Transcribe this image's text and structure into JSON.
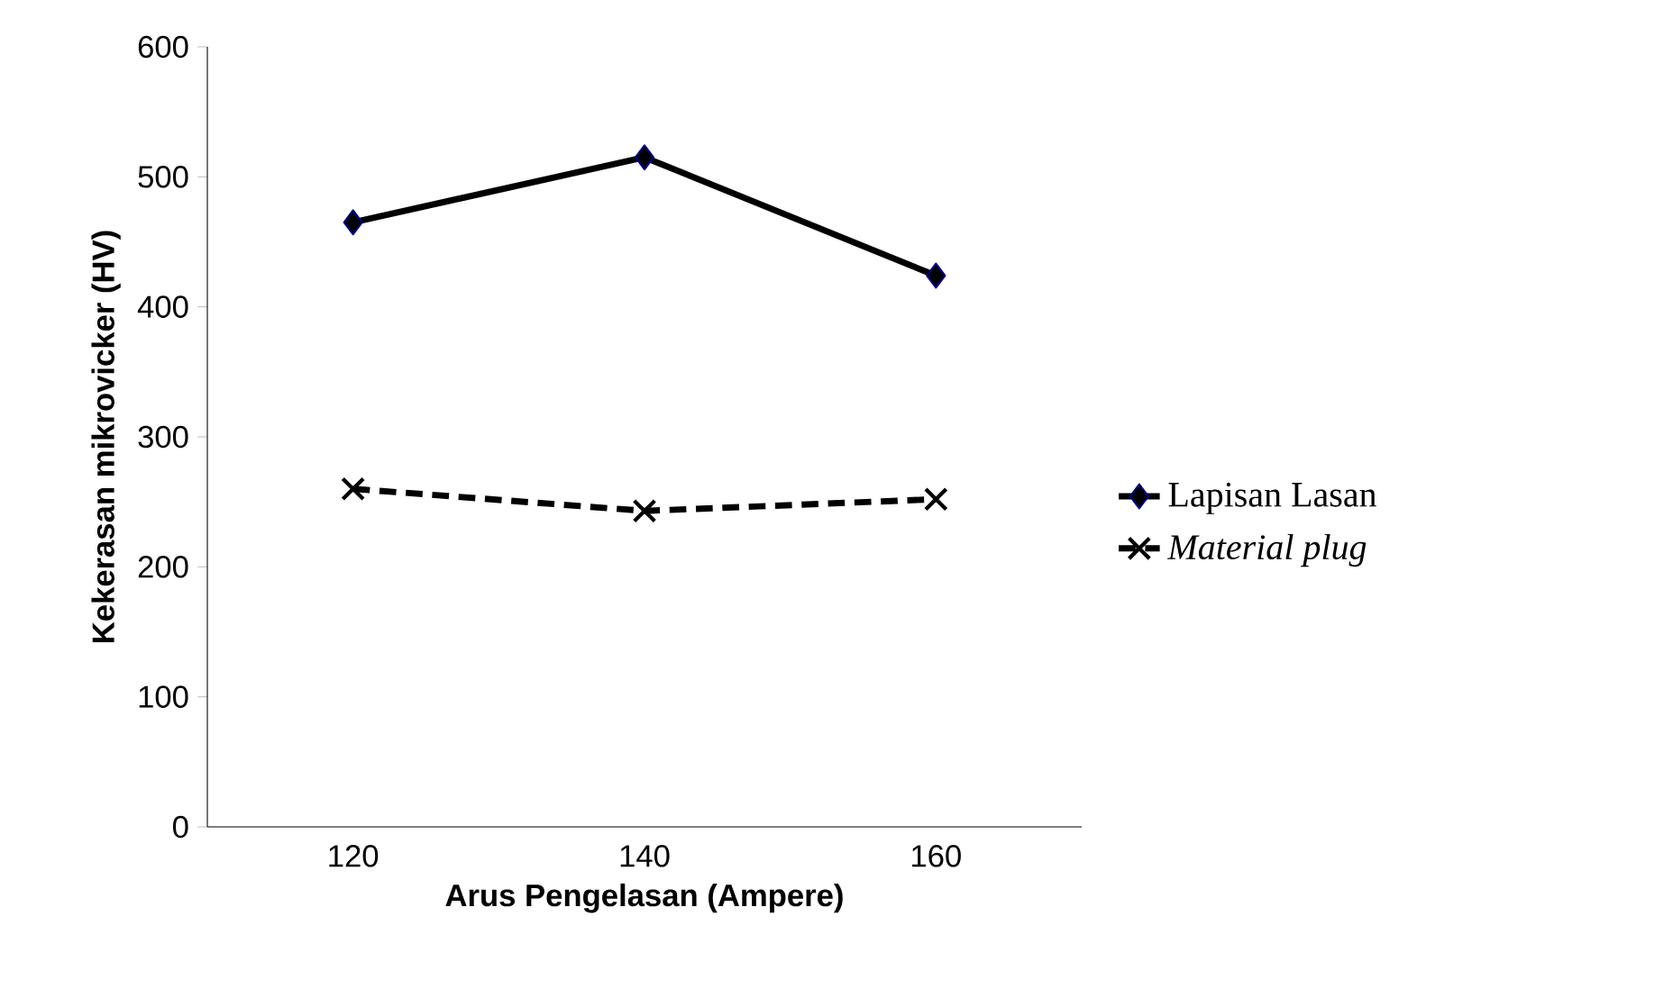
{
  "chart_data": {
    "type": "line",
    "xlabel": "Arus Pengelasan (Ampere)",
    "ylabel": "Kekerasan mikrovicker (HV)",
    "categories": [
      "120",
      "140",
      "160"
    ],
    "ylim": [
      0,
      600
    ],
    "yticks": [
      0,
      100,
      200,
      300,
      400,
      500,
      600
    ],
    "grid": false,
    "legend": "right",
    "series": [
      {
        "name": "Lapisan Lasan",
        "color": "#000000",
        "marker": "diamond",
        "line_style": "solid",
        "values": [
          465,
          515,
          424
        ]
      },
      {
        "name": "Material plug",
        "color": "#000000",
        "marker": "cross",
        "line_style": "dashed",
        "values": [
          260,
          243,
          252
        ]
      }
    ]
  }
}
